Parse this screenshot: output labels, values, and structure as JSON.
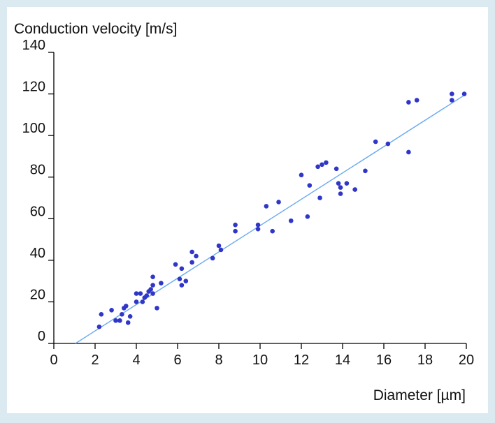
{
  "chart_data": {
    "type": "scatter",
    "ylabel": "Conduction velocity [m/s]",
    "xlabel": "Diameter [µm]",
    "xlim": [
      0,
      20
    ],
    "ylim": [
      0,
      140
    ],
    "xticks": [
      "0",
      "2",
      "4",
      "6",
      "8",
      "10",
      "12",
      "14",
      "16",
      "18",
      "20"
    ],
    "yticks": [
      "0",
      "20",
      "40",
      "60",
      "80",
      "100",
      "120",
      "140"
    ],
    "grid": false,
    "legend": "none",
    "series": [
      {
        "name": "measurements",
        "color": "#2f36c8",
        "points": [
          [
            2.2,
            8
          ],
          [
            2.3,
            14
          ],
          [
            2.8,
            16
          ],
          [
            3.0,
            11
          ],
          [
            3.2,
            11
          ],
          [
            3.3,
            14
          ],
          [
            3.4,
            17
          ],
          [
            3.5,
            18
          ],
          [
            3.6,
            10
          ],
          [
            3.7,
            13
          ],
          [
            4.0,
            20
          ],
          [
            4.0,
            24
          ],
          [
            4.2,
            24
          ],
          [
            4.3,
            20
          ],
          [
            4.4,
            22
          ],
          [
            4.5,
            23
          ],
          [
            4.6,
            25
          ],
          [
            4.7,
            26
          ],
          [
            4.8,
            24
          ],
          [
            4.8,
            28
          ],
          [
            4.8,
            32
          ],
          [
            5.0,
            17
          ],
          [
            5.2,
            29
          ],
          [
            5.9,
            38
          ],
          [
            6.1,
            31
          ],
          [
            6.2,
            36
          ],
          [
            6.2,
            28
          ],
          [
            6.4,
            30
          ],
          [
            6.7,
            39
          ],
          [
            6.7,
            44
          ],
          [
            6.9,
            42
          ],
          [
            7.7,
            41
          ],
          [
            8.0,
            47
          ],
          [
            8.1,
            45
          ],
          [
            8.8,
            57
          ],
          [
            8.8,
            54
          ],
          [
            9.9,
            57
          ],
          [
            9.9,
            55
          ],
          [
            10.3,
            66
          ],
          [
            10.6,
            54
          ],
          [
            10.9,
            68
          ],
          [
            11.5,
            59
          ],
          [
            12.0,
            81
          ],
          [
            12.3,
            61
          ],
          [
            12.4,
            76
          ],
          [
            12.8,
            85
          ],
          [
            12.9,
            70
          ],
          [
            13.0,
            86
          ],
          [
            13.2,
            87
          ],
          [
            13.7,
            84
          ],
          [
            13.8,
            77
          ],
          [
            13.9,
            75
          ],
          [
            13.9,
            72
          ],
          [
            14.2,
            77
          ],
          [
            14.6,
            74
          ],
          [
            15.1,
            83
          ],
          [
            15.6,
            97
          ],
          [
            16.2,
            96
          ],
          [
            17.2,
            116
          ],
          [
            17.2,
            92
          ],
          [
            17.6,
            117
          ],
          [
            19.3,
            120
          ],
          [
            19.3,
            117
          ],
          [
            19.9,
            120
          ]
        ]
      }
    ],
    "fit_line": {
      "name": "linear fit",
      "color": "#6aaaf0",
      "x": [
        1.05,
        20
      ],
      "y": [
        0,
        120
      ]
    }
  }
}
